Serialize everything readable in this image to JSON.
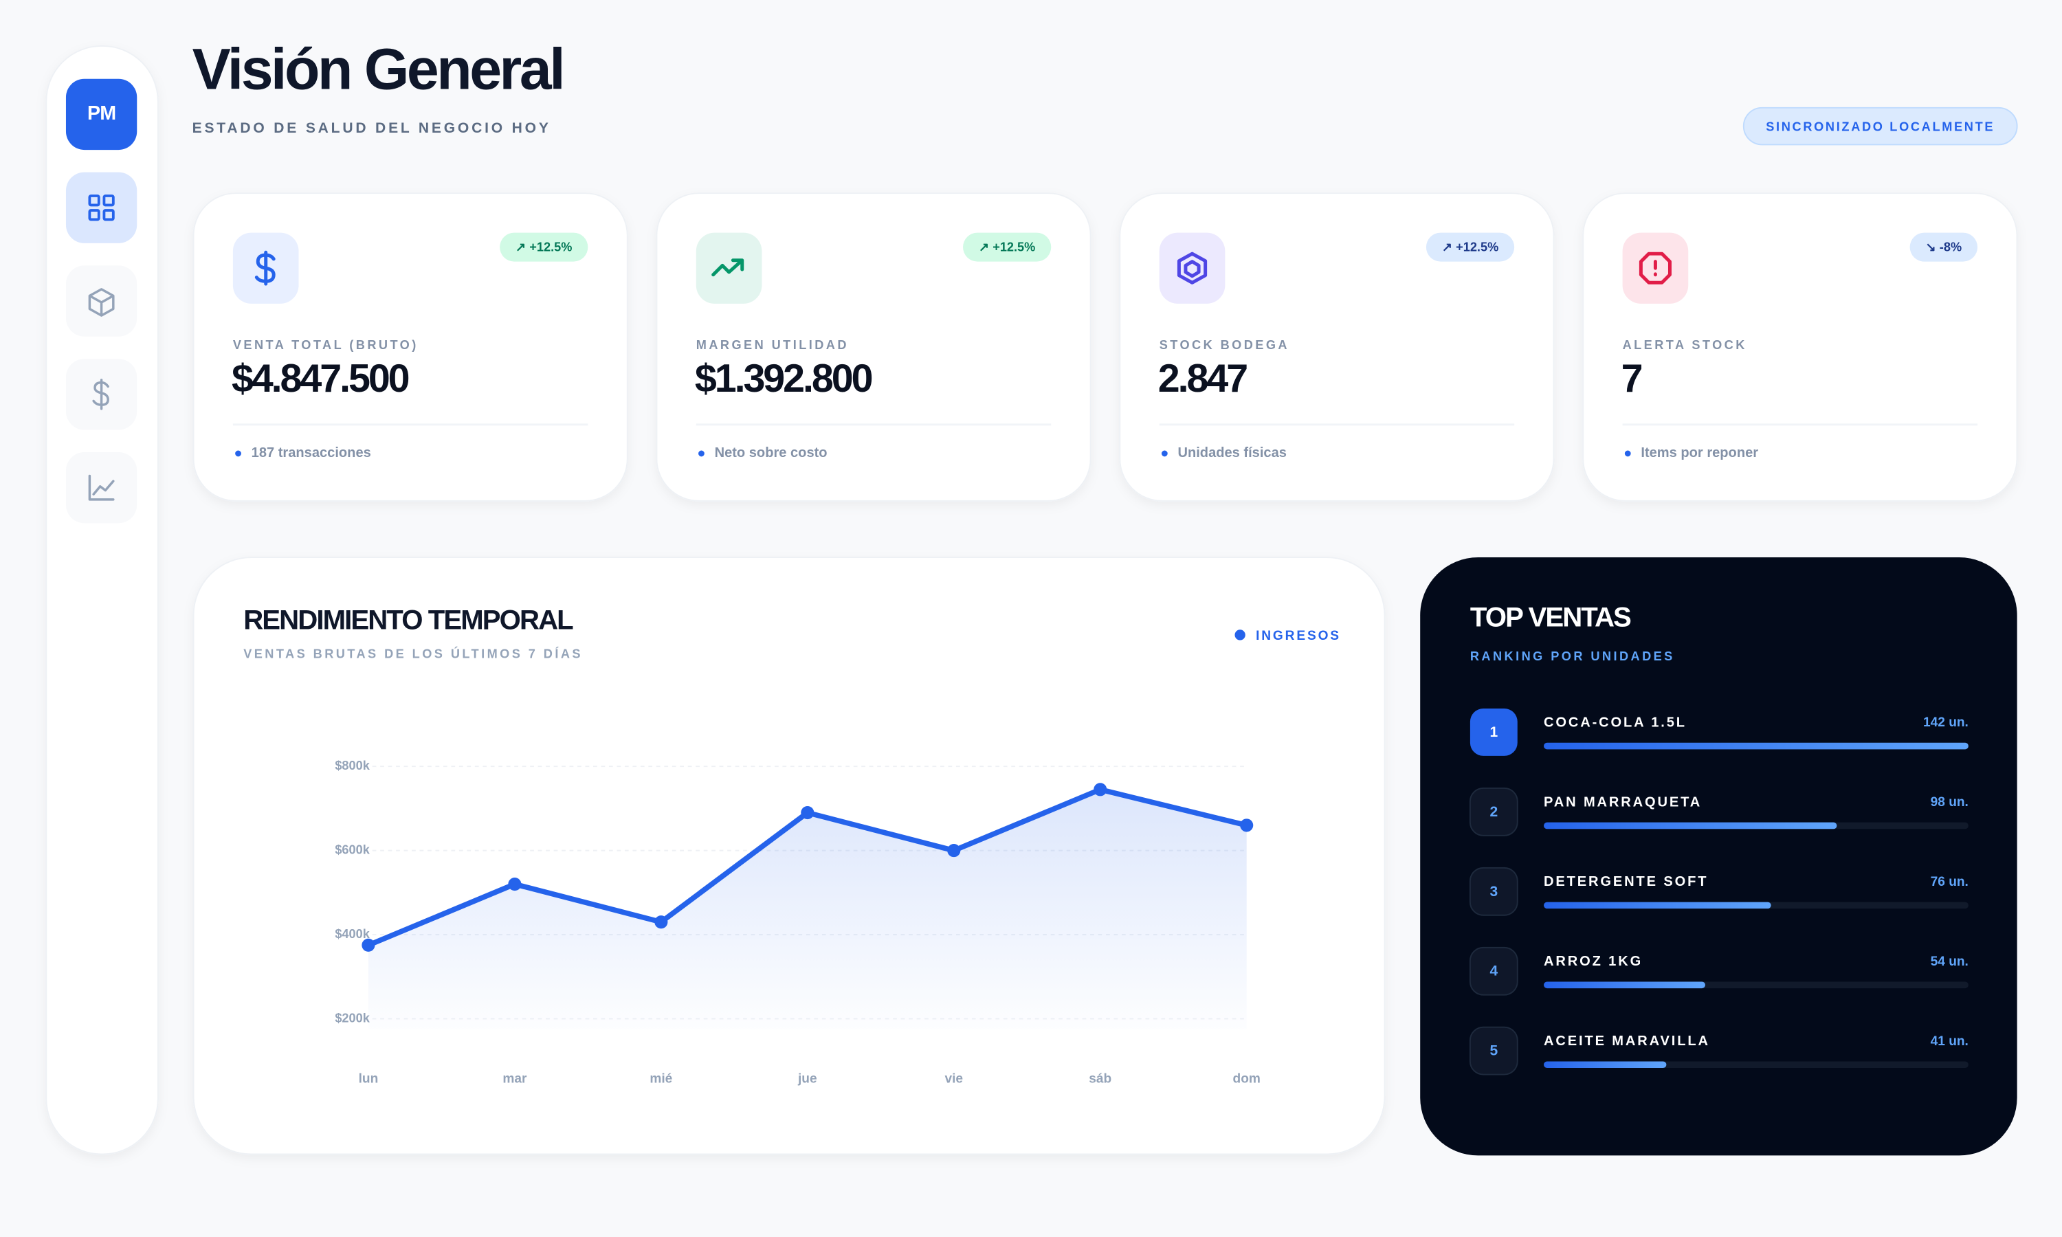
{
  "sidebar": {
    "avatar": "PM"
  },
  "header": {
    "title": "Visión General",
    "subtitle": "ESTADO DE SALUD DEL NEGOCIO HOY",
    "status": "SINCRONIZADO LOCALMENTE"
  },
  "kpis": [
    {
      "label": "VENTA TOTAL (BRUTO)",
      "value": "$4.847.500",
      "change": "↗ +12.5%",
      "note": "187 transacciones"
    },
    {
      "label": "MARGEN UTILIDAD",
      "value": "$1.392.800",
      "change": "↗ +12.5%",
      "note": "Neto sobre costo"
    },
    {
      "label": "STOCK BODEGA",
      "value": "2.847",
      "change": "↗ +12.5%",
      "note": "Unidades físicas"
    },
    {
      "label": "ALERTA STOCK",
      "value": "7",
      "change": "↘ -8%",
      "note": "Items por reponer"
    }
  ],
  "chart_data": {
    "type": "line",
    "title": "RENDIMIENTO TEMPORAL",
    "subtitle": "VENTAS BRUTAS DE LOS ÚLTIMOS 7 DÍAS",
    "categories": [
      "lun",
      "mar",
      "mié",
      "jue",
      "vie",
      "sáb",
      "dom"
    ],
    "series": [
      {
        "name": "INGRESOS",
        "color": "#2563eb",
        "values": [
          375000,
          520000,
          430000,
          690000,
          600000,
          745000,
          660000
        ]
      }
    ],
    "ylim": [
      200000,
      800000
    ],
    "yticks": [
      {
        "value": 200000,
        "label": "$200k"
      },
      {
        "value": 400000,
        "label": "$400k"
      },
      {
        "value": 600000,
        "label": "$600k"
      },
      {
        "value": 800000,
        "label": "$800k"
      }
    ],
    "grid": true
  },
  "top_sales": {
    "title": "TOP VENTAS",
    "subtitle": "RANKING POR UNIDADES",
    "ranks": [
      1,
      2,
      3,
      4,
      5
    ],
    "names": [
      "COCA-COLA 1.5L",
      "PAN MARRAQUETA",
      "DETERGENTE SOFT",
      "ARROZ 1KG",
      "ACEITE MARAVILLA"
    ],
    "values": [
      142,
      98,
      76,
      54,
      41
    ],
    "value_labels": [
      "142 un.",
      "98 un.",
      "76 un.",
      "54 un.",
      "41 un."
    ]
  }
}
